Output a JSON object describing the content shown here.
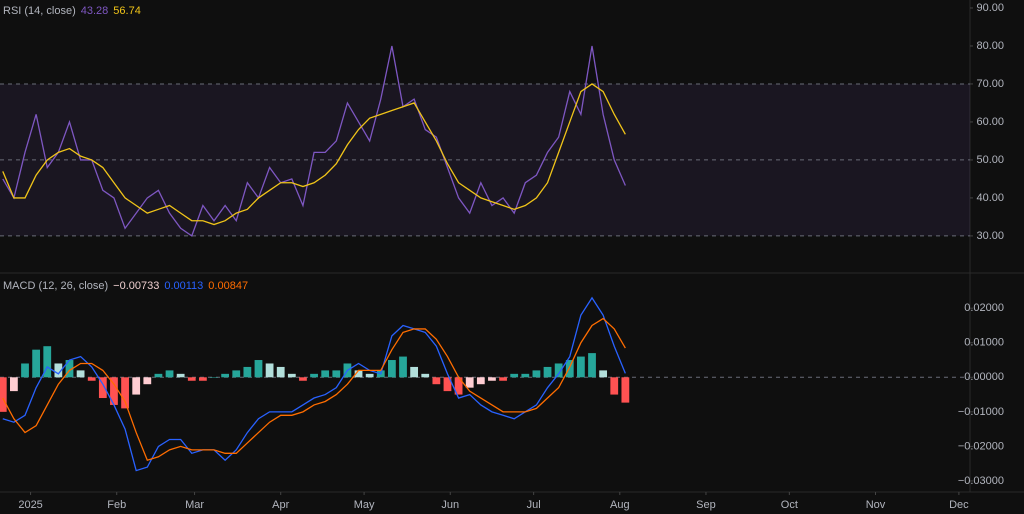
{
  "chart_data": [
    {
      "type": "line",
      "title": "RSI (14, close)",
      "x": [
        -10,
        -6,
        -2,
        2,
        6,
        10,
        14,
        18,
        22,
        26,
        30,
        34,
        38,
        42,
        46,
        50,
        54,
        58,
        62,
        66,
        70,
        74,
        78,
        82,
        86,
        90,
        94,
        98,
        102,
        106,
        110,
        114,
        118,
        122,
        126,
        130,
        134,
        138,
        142,
        146,
        150,
        154,
        158,
        162,
        166,
        170,
        174,
        178,
        182,
        186,
        190,
        194,
        198,
        202,
        206,
        210,
        214
      ],
      "series": [
        {
          "color": "#7e57c2",
          "values": [
            45,
            40,
            52,
            62,
            48,
            52,
            60,
            50,
            50,
            42,
            40,
            32,
            36,
            40,
            42,
            36,
            32,
            30,
            38,
            34,
            38,
            34,
            44,
            40,
            48,
            44,
            45,
            38,
            52,
            52,
            55,
            65,
            60,
            55,
            66,
            80,
            64,
            66,
            58,
            56,
            48,
            40,
            36,
            44,
            38,
            40,
            36,
            44,
            46,
            52,
            56,
            68,
            62,
            80,
            62,
            50,
            43.28
          ]
        },
        {
          "color": "#f0c419",
          "values": [
            47,
            40,
            40,
            46,
            50,
            52,
            53,
            51,
            50,
            48,
            44,
            40,
            38,
            36,
            37,
            38,
            36,
            34,
            34,
            33,
            34,
            36,
            37,
            40,
            42,
            44,
            44,
            43,
            44,
            46,
            49,
            54,
            58,
            61,
            62,
            63,
            64,
            65,
            60,
            55,
            49,
            44,
            42,
            40,
            39,
            38,
            37,
            38,
            40,
            44,
            52,
            60,
            68,
            70,
            68,
            62,
            56.74
          ]
        }
      ],
      "band": [
        30,
        70
      ],
      "levels": [
        30,
        50,
        70
      ],
      "xlim": [
        -11,
        338
      ],
      "ylim": [
        20.5,
        92.1
      ],
      "yticks": [
        {
          "value": 30,
          "label": "30.00"
        },
        {
          "value": 40,
          "label": "40.00"
        },
        {
          "value": 50,
          "label": "50.00"
        },
        {
          "value": 60,
          "label": "60.00"
        },
        {
          "value": 70,
          "label": "70.00"
        },
        {
          "value": 80,
          "label": "80.00"
        },
        {
          "value": 90,
          "label": "90.00"
        }
      ]
    },
    {
      "type": "macd",
      "title": "MACD (12, 26, close)",
      "x": [
        -10,
        -6,
        -2,
        2,
        6,
        10,
        14,
        18,
        22,
        26,
        30,
        34,
        38,
        42,
        46,
        50,
        54,
        58,
        62,
        66,
        70,
        74,
        78,
        82,
        86,
        90,
        94,
        98,
        102,
        106,
        110,
        114,
        118,
        122,
        126,
        130,
        134,
        138,
        142,
        146,
        150,
        154,
        158,
        162,
        166,
        170,
        174,
        178,
        182,
        186,
        190,
        194,
        198,
        202,
        206,
        210,
        214
      ],
      "histogram": {
        "colors": [
          "#26a69a",
          "#b2dfdb",
          "#ff5252",
          "#ffcdd2"
        ],
        "values": [
          -0.01,
          -0.004,
          0.004,
          0.008,
          0.009,
          0.004,
          0.005,
          0.002,
          -0.001,
          -0.006,
          -0.008,
          -0.009,
          -0.005,
          -0.002,
          0.001,
          0.002,
          0.001,
          -0.001,
          -0.001,
          0,
          0.001,
          0.002,
          0.003,
          0.005,
          0.004,
          0.003,
          0.001,
          -0.001,
          0.001,
          0.002,
          0.002,
          0.004,
          0.002,
          0.001,
          0.002,
          0.005,
          0.006,
          0.003,
          0.001,
          -0.002,
          -0.004,
          -0.005,
          -0.003,
          -0.002,
          -0.001,
          -0.001,
          0.001,
          0.001,
          0.002,
          0.003,
          0.004,
          0.005,
          0.006,
          0.007,
          0.002,
          -0.005,
          -0.00733
        ],
        "last_label": "−0.00733"
      },
      "series": [
        {
          "color": "#2962ff",
          "values": [
            -0.012,
            -0.013,
            -0.011,
            -0.003,
            0.003,
            0.001,
            0.005,
            0.006,
            0.003,
            -0.002,
            -0.008,
            -0.015,
            -0.027,
            -0.026,
            -0.02,
            -0.018,
            -0.018,
            -0.022,
            -0.021,
            -0.021,
            -0.024,
            -0.021,
            -0.016,
            -0.012,
            -0.01,
            -0.01,
            -0.01,
            -0.008,
            -0.006,
            -0.005,
            -0.003,
            0.002,
            0.004,
            0.002,
            0.001,
            0.012,
            0.015,
            0.014,
            0.013,
            0.009,
            0.001,
            -0.006,
            -0.005,
            -0.008,
            -0.01,
            -0.011,
            -0.012,
            -0.01,
            -0.008,
            -0.003,
            0.001,
            0.006,
            0.018,
            0.023,
            0.018,
            0.009,
            0.00113
          ]
        },
        {
          "color": "#ff6d00",
          "values": [
            -0.006,
            -0.012,
            -0.016,
            -0.014,
            -0.008,
            -0.002,
            0.002,
            0.004,
            0.004,
            0.002,
            -0.002,
            -0.007,
            -0.016,
            -0.024,
            -0.023,
            -0.021,
            -0.02,
            -0.021,
            -0.021,
            -0.021,
            -0.022,
            -0.022,
            -0.019,
            -0.016,
            -0.013,
            -0.011,
            -0.011,
            -0.01,
            -0.008,
            -0.007,
            -0.005,
            -0.002,
            0.002,
            0.002,
            0.002,
            0.008,
            0.013,
            0.014,
            0.014,
            0.011,
            0.006,
            0,
            -0.004,
            -0.006,
            -0.008,
            -0.01,
            -0.01,
            -0.01,
            -0.009,
            -0.006,
            -0.003,
            0.003,
            0.01,
            0.015,
            0.017,
            0.014,
            0.00847
          ]
        }
      ],
      "zero_line": 0,
      "xlim": [
        -11,
        338
      ],
      "ylim": [
        -0.0332,
        0.0299
      ],
      "yticks": [
        {
          "value": -0.03,
          "label": "−0.03000"
        },
        {
          "value": -0.02,
          "label": "−0.02000"
        },
        {
          "value": -0.01,
          "label": "−0.01000"
        },
        {
          "value": 0,
          "label": "0.00000"
        },
        {
          "value": 0.01,
          "label": "0.01000"
        },
        {
          "value": 0.02,
          "label": "0.02000"
        }
      ],
      "xticks": [
        {
          "value": 0,
          "label": "2025"
        },
        {
          "value": 31,
          "label": "Feb"
        },
        {
          "value": 59,
          "label": "Mar"
        },
        {
          "value": 90,
          "label": "Apr"
        },
        {
          "value": 120,
          "label": "May"
        },
        {
          "value": 151,
          "label": "Jun"
        },
        {
          "value": 181,
          "label": "Jul"
        },
        {
          "value": 212,
          "label": "Aug"
        },
        {
          "value": 243,
          "label": "Sep"
        },
        {
          "value": 273,
          "label": "Oct"
        },
        {
          "value": 304,
          "label": "Nov"
        },
        {
          "value": 334,
          "label": "Dec"
        }
      ]
    }
  ]
}
